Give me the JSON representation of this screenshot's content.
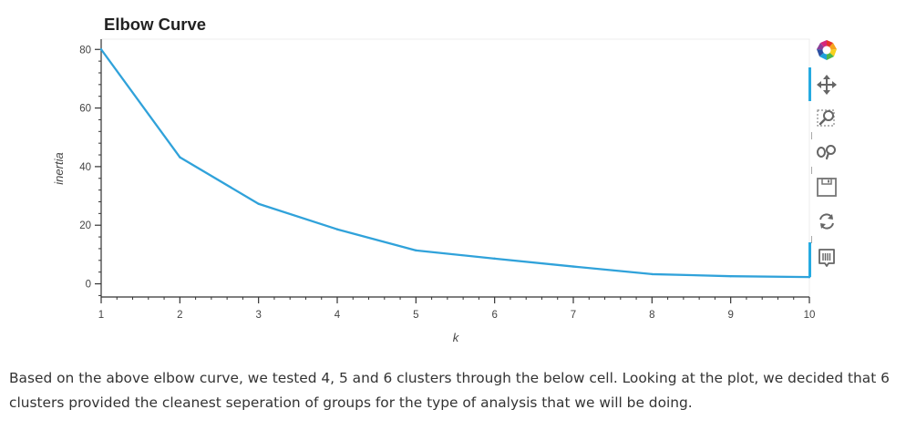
{
  "chart_data": {
    "type": "line",
    "title": "Elbow Curve",
    "xlabel": "k",
    "ylabel": "inertia",
    "x": [
      1,
      2,
      3,
      4,
      5,
      6,
      7,
      8,
      9,
      10
    ],
    "series": [
      {
        "values": [
          80.0,
          43.2,
          27.3,
          18.6,
          11.4,
          8.6,
          5.9,
          3.3,
          2.6,
          2.3
        ]
      }
    ],
    "xlim": [
      1,
      10
    ],
    "ylim": [
      -4.5,
      83.5
    ],
    "xticks": [
      1,
      2,
      3,
      4,
      5,
      6,
      7,
      8,
      9,
      10
    ],
    "yticks": [
      0,
      20,
      40,
      60,
      80
    ],
    "grid": false,
    "line_color": "#30a2da"
  },
  "toolbar": {
    "logo": "bokeh-logo-icon",
    "tools": [
      "pan-icon",
      "box-zoom-icon",
      "wheel-zoom-icon",
      "save-icon",
      "reset-icon",
      "hover-icon"
    ]
  },
  "paragraph": "Based on the above elbow curve, we tested 4, 5 and 6 clusters through the below cell. Looking at the plot, we decided that 6 clusters provided the cleanest seperation of groups for the type of analysis that we will be doing."
}
